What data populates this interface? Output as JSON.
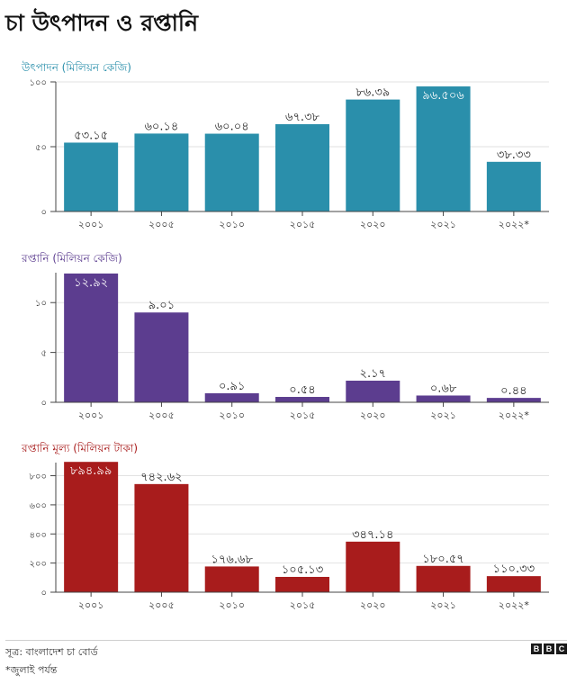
{
  "title": "চা উৎপাদন ও রপ্তানি",
  "chart_data": [
    {
      "type": "bar",
      "title": "উৎপাদন (মিলিয়ন কেজি)",
      "color": "#2a8fab",
      "categories": [
        "২০০১",
        "২০০৫",
        "২০১০",
        "২০১৫",
        "২০২০",
        "২০২১",
        "২০২২*"
      ],
      "values": [
        53.15,
        60.14,
        60.04,
        67.38,
        86.39,
        96.506,
        38.33
      ],
      "value_labels": [
        "৫৩.১৫",
        "৬০.১৪",
        "৬০.০৪",
        "৬৭.৩৮",
        "৮৬.৩৯",
        "৯৬.৫০৬",
        "৩৮.৩৩"
      ],
      "ylim": [
        0,
        100
      ],
      "yticks": [
        0,
        50,
        100
      ],
      "ytick_labels": [
        "০",
        "৫০",
        "১০০"
      ],
      "grid": true
    },
    {
      "type": "bar",
      "title": "রপ্তানি (মিলিয়ন কেজি)",
      "color": "#5c3d8f",
      "categories": [
        "২০০১",
        "২০০৫",
        "২০১০",
        "২০১৫",
        "২০২০",
        "২০২১",
        "২০২২*"
      ],
      "values": [
        12.92,
        9.01,
        0.91,
        0.54,
        2.17,
        0.68,
        0.44
      ],
      "value_labels": [
        "১২.৯২",
        "৯.০১",
        "০.৯১",
        "০.৫৪",
        "২.১৭",
        "০.৬৮",
        "০.৪৪"
      ],
      "ylim": [
        0,
        13
      ],
      "yticks": [
        0,
        5,
        10
      ],
      "ytick_labels": [
        "০",
        "৫",
        "১০"
      ],
      "grid": true
    },
    {
      "type": "bar",
      "title": "রপ্তানি মূল্য (মিলিয়ন টাকা)",
      "color": "#a81c1c",
      "categories": [
        "২০০১",
        "২০০৫",
        "২০১০",
        "২০১৫",
        "২০২০",
        "২০২১",
        "২০২২*"
      ],
      "values": [
        894.99,
        742.62,
        176.68,
        105.13,
        347.14,
        180.57,
        110.33
      ],
      "value_labels": [
        "৮৯৪.৯৯",
        "৭৪২.৬২",
        "১৭৬.৬৮",
        "১০৫.১৩",
        "৩৪৭.১৪",
        "১৮০.৫৭",
        "১১০.৩৩"
      ],
      "ylim": [
        0,
        890
      ],
      "yticks": [
        0,
        200,
        400,
        600,
        800
      ],
      "ytick_labels": [
        "০",
        "২০০",
        "৪০০",
        "৬০০",
        "৮০০"
      ],
      "grid": true
    }
  ],
  "footer": {
    "source": "সূত্র: বাংলাদেশ চা বোর্ড",
    "note": "*জুলাই পর্যন্ত",
    "logo_letters": [
      "B",
      "B",
      "C"
    ]
  }
}
